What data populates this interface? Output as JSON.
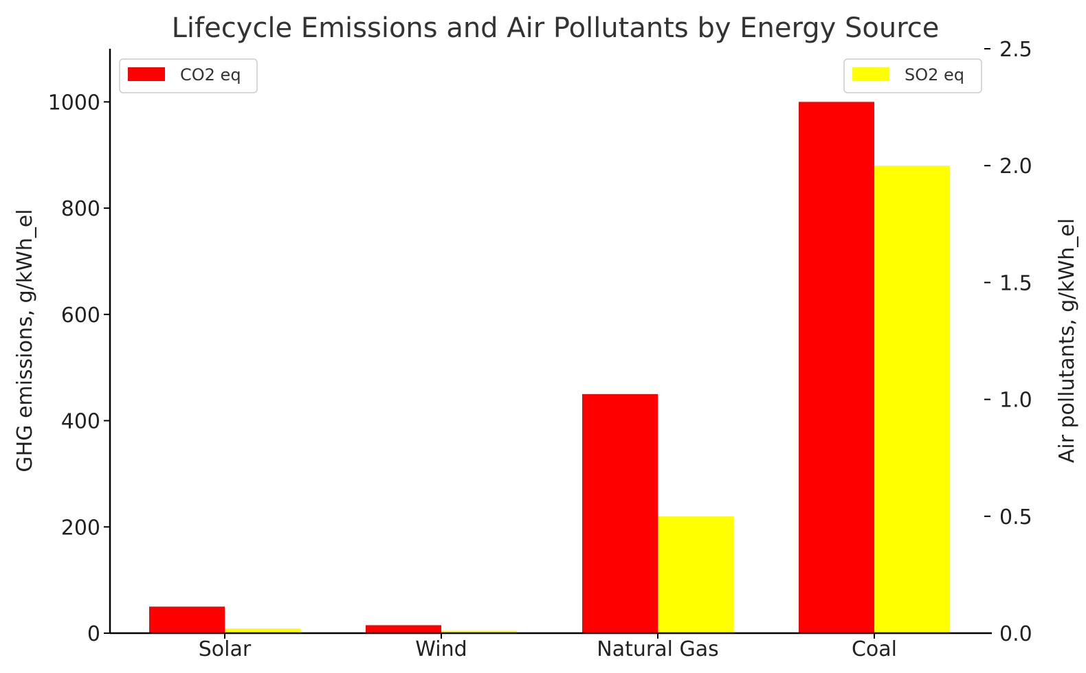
{
  "chart_data": {
    "type": "bar",
    "title": "Lifecycle Emissions and Air Pollutants by Energy Source",
    "categories": [
      "Solar",
      "Wind",
      "Natural Gas",
      "Coal"
    ],
    "series": [
      {
        "name": "CO2 eq",
        "axis": "left",
        "color": "#ff0000",
        "values": [
          50,
          15,
          450,
          1000
        ]
      },
      {
        "name": "SO2 eq",
        "axis": "right",
        "color": "#ffff00",
        "values": [
          0.02,
          0.01,
          0.5,
          2.0
        ]
      }
    ],
    "ylabel": "GHG emissions, g/kWh_el",
    "ylabel_right": "Air pollutants, g/kWh_el",
    "ylim": [
      0,
      1100
    ],
    "ylim_right": [
      0,
      2.5
    ],
    "yticks": [
      "0",
      "200",
      "400",
      "600",
      "800",
      "1000"
    ],
    "yticks_right": [
      "0.0",
      "0.5",
      "1.0",
      "1.5",
      "2.0",
      "2.5"
    ],
    "legend_left_position": "top-left",
    "legend_right_position": "top-right",
    "grid": false
  }
}
